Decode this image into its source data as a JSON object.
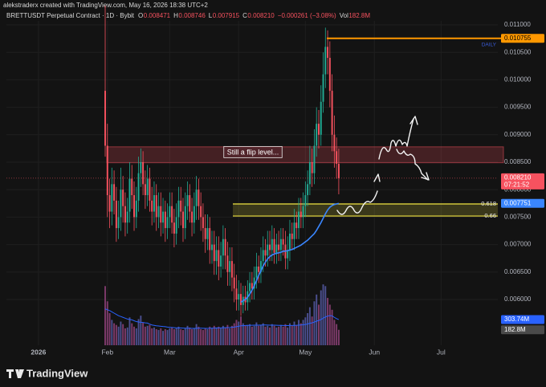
{
  "chart_data": {
    "type": "candlestick",
    "credit": "alekstraderx created with TradingView.com, May 16, 2026 18:38 UTC+2",
    "title": "BRETTUSDT Perpetual Contract · 1D · Bybit",
    "stats": [
      {
        "key": "O",
        "text": "0.008471"
      },
      {
        "key": "H",
        "text": "0.008746"
      },
      {
        "key": "L",
        "text": "0.007915"
      },
      {
        "key": "C",
        "text": "0.008210"
      },
      {
        "key": "",
        "text": "−0.000261 (−3.08%)"
      },
      {
        "key": "Vol",
        "text": "182.8M"
      }
    ],
    "brand": "TradingView",
    "annotation": "Still a flip level...",
    "up_color": "#22ab94",
    "down_color": "#f7525f",
    "volume_up_color": "#4b4f8f",
    "volume_down_color": "#7d3a6a",
    "grid": true,
    "xlim": [
      -14.4,
      206.5
    ],
    "xticks": [
      {
        "value": 0,
        "label": "2026"
      },
      {
        "value": 31,
        "label": "Feb"
      },
      {
        "value": 59,
        "label": "Mar"
      },
      {
        "value": 90,
        "label": "Apr"
      },
      {
        "value": 120,
        "label": "May"
      },
      {
        "value": 151,
        "label": "Jun"
      },
      {
        "value": 181,
        "label": "Jul"
      }
    ],
    "ylim": [
      0.005167,
      0.011453
    ],
    "yticks": [
      {
        "value": 0.006,
        "label": "0.006000"
      },
      {
        "value": 0.0065,
        "label": "0.006500"
      },
      {
        "value": 0.007,
        "label": "0.007000"
      },
      {
        "value": 0.0075,
        "label": "0.007500"
      },
      {
        "value": 0.008,
        "label": "0.008000"
      },
      {
        "value": 0.0085,
        "label": "0.008500"
      },
      {
        "value": 0.009,
        "label": "0.009000"
      },
      {
        "value": 0.0095,
        "label": "0.009500"
      },
      {
        "value": 0.01,
        "label": "0.010000"
      },
      {
        "value": 0.0105,
        "label": "0.010500"
      },
      {
        "value": 0.011,
        "label": "0.011000"
      }
    ],
    "vlim": [
      0,
      760
    ],
    "x": [
      30,
      31,
      32,
      33,
      34,
      35,
      36,
      37,
      38,
      39,
      40,
      41,
      42,
      43,
      44,
      45,
      46,
      47,
      48,
      49,
      50,
      51,
      52,
      53,
      54,
      55,
      56,
      57,
      58,
      59,
      60,
      61,
      62,
      63,
      64,
      65,
      66,
      67,
      68,
      69,
      70,
      71,
      72,
      73,
      74,
      75,
      76,
      77,
      78,
      79,
      80,
      81,
      82,
      83,
      84,
      85,
      86,
      87,
      88,
      89,
      90,
      91,
      92,
      93,
      94,
      95,
      96,
      97,
      98,
      99,
      100,
      101,
      102,
      103,
      104,
      105,
      106,
      107,
      108,
      109,
      110,
      111,
      112,
      113,
      114,
      115,
      116,
      117,
      118,
      119,
      120,
      121,
      122,
      123,
      124,
      125,
      126,
      127,
      128,
      129,
      130,
      131,
      132,
      133,
      134,
      135
    ],
    "open": [
      0.0098,
      0.0088,
      0.0079,
      0.0076,
      0.0081,
      0.0078,
      0.0073,
      0.0075,
      0.008,
      0.0077,
      0.0074,
      0.0076,
      0.0082,
      0.0079,
      0.0075,
      0.0078,
      0.0083,
      0.0085,
      0.0081,
      0.0079,
      0.0082,
      0.0078,
      0.0076,
      0.0079,
      0.0075,
      0.0077,
      0.0074,
      0.0076,
      0.0073,
      0.0075,
      0.0077,
      0.0074,
      0.0072,
      0.0075,
      0.0078,
      0.0076,
      0.0073,
      0.0077,
      0.0079,
      0.0076,
      0.0074,
      0.0077,
      0.008,
      0.0077,
      0.0075,
      0.0073,
      0.0071,
      0.0073,
      0.0069,
      0.007,
      0.0067,
      0.0069,
      0.0066,
      0.0068,
      0.0071,
      0.0068,
      0.0065,
      0.0067,
      0.0064,
      0.0062,
      0.006,
      0.0061,
      0.0059,
      0.00605,
      0.00595,
      0.00615,
      0.0063,
      0.0062,
      0.0064,
      0.0066,
      0.0065,
      0.0067,
      0.0069,
      0.0068,
      0.007,
      0.0069,
      0.0071,
      0.00685,
      0.007,
      0.0069,
      0.0071,
      0.007,
      0.00675,
      0.0069,
      0.0072,
      0.0071,
      0.0074,
      0.0073,
      0.0076,
      0.0075,
      0.0077,
      0.0079,
      0.0081,
      0.0085,
      0.0083,
      0.0088,
      0.0092,
      0.009,
      0.0096,
      0.0101,
      0.0106,
      0.0104,
      0.0098,
      0.009,
      0.0087,
      0.008471
    ],
    "high": [
      0.01135,
      0.0092,
      0.0082,
      0.0084,
      0.00835,
      0.00805,
      0.0078,
      0.0084,
      0.00825,
      0.00795,
      0.00785,
      0.0085,
      0.00845,
      0.00815,
      0.00805,
      0.0086,
      0.00875,
      0.0087,
      0.00835,
      0.00845,
      0.0084,
      0.00805,
      0.00815,
      0.0081,
      0.00795,
      0.00795,
      0.00785,
      0.0078,
      0.00775,
      0.00795,
      0.00795,
      0.00765,
      0.00775,
      0.00805,
      0.00805,
      0.00785,
      0.00795,
      0.00815,
      0.0081,
      0.00785,
      0.00795,
      0.00825,
      0.0082,
      0.00795,
      0.00775,
      0.00755,
      0.00755,
      0.0075,
      0.00725,
      0.00725,
      0.00715,
      0.00715,
      0.00705,
      0.00735,
      0.0073,
      0.00705,
      0.00695,
      0.00695,
      0.00665,
      0.00645,
      0.00635,
      0.0063,
      0.00625,
      0.00625,
      0.00635,
      0.0065,
      0.0065,
      0.0066,
      0.00685,
      0.0068,
      0.00695,
      0.00715,
      0.0071,
      0.00725,
      0.00725,
      0.00735,
      0.0073,
      0.0072,
      0.00725,
      0.0073,
      0.0073,
      0.00725,
      0.00715,
      0.00745,
      0.0074,
      0.00765,
      0.0076,
      0.00785,
      0.00785,
      0.00795,
      0.00815,
      0.00835,
      0.0088,
      0.00875,
      0.0091,
      0.0095,
      0.00945,
      0.0099,
      0.0105,
      0.01095,
      0.0109,
      0.0107,
      0.0101,
      0.00935,
      0.00895,
      0.008746
    ],
    "low": [
      0.0086,
      0.0075,
      0.0073,
      0.00735,
      0.00755,
      0.00705,
      0.0071,
      0.00725,
      0.0074,
      0.00715,
      0.0072,
      0.0074,
      0.00765,
      0.00725,
      0.0073,
      0.0076,
      0.00805,
      0.0079,
      0.00765,
      0.0077,
      0.0076,
      0.00735,
      0.0074,
      0.00725,
      0.0073,
      0.00715,
      0.0072,
      0.00705,
      0.0071,
      0.0073,
      0.0072,
      0.00695,
      0.007,
      0.0073,
      0.00735,
      0.00705,
      0.0071,
      0.00745,
      0.0074,
      0.00715,
      0.0072,
      0.00745,
      0.00745,
      0.00725,
      0.00705,
      0.00685,
      0.0069,
      0.00665,
      0.00665,
      0.00645,
      0.00645,
      0.00635,
      0.0064,
      0.00655,
      0.00655,
      0.00625,
      0.00625,
      0.00615,
      0.00595,
      0.0058,
      0.0058,
      0.0057,
      0.00575,
      0.0058,
      0.0058,
      0.00595,
      0.006,
      0.006,
      0.0062,
      0.0063,
      0.0063,
      0.0065,
      0.0066,
      0.0066,
      0.0067,
      0.0067,
      0.00665,
      0.00665,
      0.0067,
      0.0067,
      0.0068,
      0.00655,
      0.00655,
      0.0067,
      0.0069,
      0.0069,
      0.0071,
      0.0071,
      0.0073,
      0.0073,
      0.0075,
      0.0077,
      0.0079,
      0.00805,
      0.0081,
      0.0086,
      0.00875,
      0.0088,
      0.0094,
      0.00985,
      0.0101,
      0.0095,
      0.0087,
      0.0084,
      0.0082,
      0.007915
    ],
    "close": [
      0.0088,
      0.0079,
      0.0076,
      0.0081,
      0.0078,
      0.0073,
      0.0075,
      0.008,
      0.0077,
      0.0074,
      0.0076,
      0.0082,
      0.0079,
      0.0075,
      0.0078,
      0.0083,
      0.0085,
      0.0081,
      0.0079,
      0.0082,
      0.0078,
      0.0076,
      0.0079,
      0.0075,
      0.0077,
      0.0074,
      0.0076,
      0.0073,
      0.0075,
      0.0077,
      0.0074,
      0.0072,
      0.0075,
      0.0078,
      0.0076,
      0.0073,
      0.0077,
      0.0079,
      0.0076,
      0.0074,
      0.0077,
      0.008,
      0.0077,
      0.0075,
      0.0073,
      0.0071,
      0.0073,
      0.0069,
      0.007,
      0.0067,
      0.0069,
      0.0066,
      0.0068,
      0.0071,
      0.0068,
      0.0065,
      0.0067,
      0.0064,
      0.0062,
      0.006,
      0.0061,
      0.0059,
      0.00605,
      0.00595,
      0.00615,
      0.0063,
      0.0062,
      0.0064,
      0.0066,
      0.0065,
      0.0067,
      0.0069,
      0.0068,
      0.007,
      0.0069,
      0.0071,
      0.00685,
      0.007,
      0.0069,
      0.0071,
      0.007,
      0.00675,
      0.0069,
      0.0072,
      0.0071,
      0.0074,
      0.0073,
      0.0076,
      0.0075,
      0.0077,
      0.0079,
      0.0081,
      0.0085,
      0.0083,
      0.0088,
      0.0092,
      0.009,
      0.0096,
      0.0101,
      0.0106,
      0.0104,
      0.0098,
      0.009,
      0.0087,
      0.008471,
      0.00821
    ],
    "volume": [
      700,
      520,
      380,
      300,
      260,
      240,
      220,
      280,
      250,
      200,
      210,
      330,
      260,
      220,
      200,
      310,
      350,
      270,
      220,
      230,
      240,
      200,
      210,
      190,
      180,
      200,
      170,
      190,
      180,
      200,
      210,
      190,
      200,
      220,
      190,
      180,
      200,
      230,
      210,
      190,
      200,
      250,
      220,
      190,
      180,
      200,
      190,
      220,
      200,
      230,
      210,
      220,
      200,
      230,
      210,
      240,
      200,
      230,
      260,
      300,
      280,
      340,
      260,
      230,
      240,
      250,
      220,
      230,
      270,
      230,
      240,
      260,
      220,
      230,
      210,
      250,
      230,
      210,
      220,
      240,
      220,
      250,
      210,
      260,
      230,
      280,
      240,
      300,
      260,
      300,
      330,
      380,
      450,
      340,
      520,
      600,
      480,
      650,
      720,
      700,
      560,
      480,
      420,
      300,
      250,
      182.8
    ],
    "volume_label": "182.8M",
    "volume_ma": {
      "color": "#2962ff",
      "last_label": "303.74M",
      "values": [
        430,
        420,
        410,
        395,
        380,
        365,
        350,
        340,
        330,
        320,
        310,
        305,
        300,
        290,
        280,
        275,
        272,
        270,
        265,
        262,
        250,
        240,
        235,
        230,
        228,
        225,
        222,
        220,
        215,
        212,
        210,
        208,
        205,
        205,
        204,
        203,
        202,
        202,
        201,
        200,
        200,
        201,
        202,
        202,
        201,
        200,
        200,
        201,
        202,
        203,
        204,
        205,
        206,
        207,
        208,
        209,
        210,
        212,
        215,
        220,
        225,
        230,
        232,
        234,
        235,
        236,
        236,
        237,
        238,
        238,
        239,
        240,
        240,
        239,
        238,
        238,
        237,
        236,
        235,
        235,
        234,
        234,
        233,
        234,
        234,
        235,
        236,
        238,
        240,
        242,
        246,
        252,
        260,
        265,
        274,
        285,
        293,
        305,
        320,
        335,
        345,
        350,
        348,
        330,
        315,
        303.74
      ]
    },
    "ma": {
      "color": "#3a86ff",
      "values": [
        null,
        null,
        null,
        null,
        null,
        null,
        null,
        null,
        null,
        null,
        null,
        null,
        null,
        null,
        null,
        null,
        null,
        null,
        null,
        null,
        null,
        null,
        null,
        null,
        null,
        null,
        null,
        null,
        null,
        null,
        null,
        null,
        null,
        null,
        null,
        null,
        null,
        null,
        null,
        null,
        null,
        null,
        null,
        null,
        null,
        null,
        null,
        null,
        null,
        null,
        null,
        null,
        null,
        null,
        null,
        null,
        null,
        null,
        null,
        null,
        null,
        0.00595,
        0.00598,
        0.006,
        0.00604,
        0.0061,
        0.00617,
        0.00625,
        0.00634,
        0.00644,
        0.00652,
        0.00661,
        0.00668,
        0.00674,
        0.00678,
        0.00681,
        0.00683,
        0.00684,
        0.00685,
        0.00686,
        0.00688,
        0.00688,
        0.00689,
        0.0069,
        0.00691,
        0.00693,
        0.00695,
        0.00697,
        0.00699,
        0.00702,
        0.00705,
        0.00708,
        0.00712,
        0.00716,
        0.0072,
        0.00726,
        0.00733,
        0.0074,
        0.00748,
        0.00756,
        0.00763,
        0.00768,
        0.00771,
        0.00773,
        0.00774,
        0.007751
      ]
    },
    "close_tag": {
      "label": "0.008210",
      "countdown": "07:21:52"
    },
    "level": {
      "value": 0.010755,
      "note": "DAILY",
      "color": "#ff9800"
    },
    "zone": {
      "low": 0.00849,
      "high": 0.00878,
      "color": "#f7525f"
    },
    "fib_levels": [
      {
        "label": "0.618",
        "value": 0.00774
      },
      {
        "label": "0.66",
        "value": 0.00752
      }
    ],
    "fib_color": "#f0e442"
  }
}
